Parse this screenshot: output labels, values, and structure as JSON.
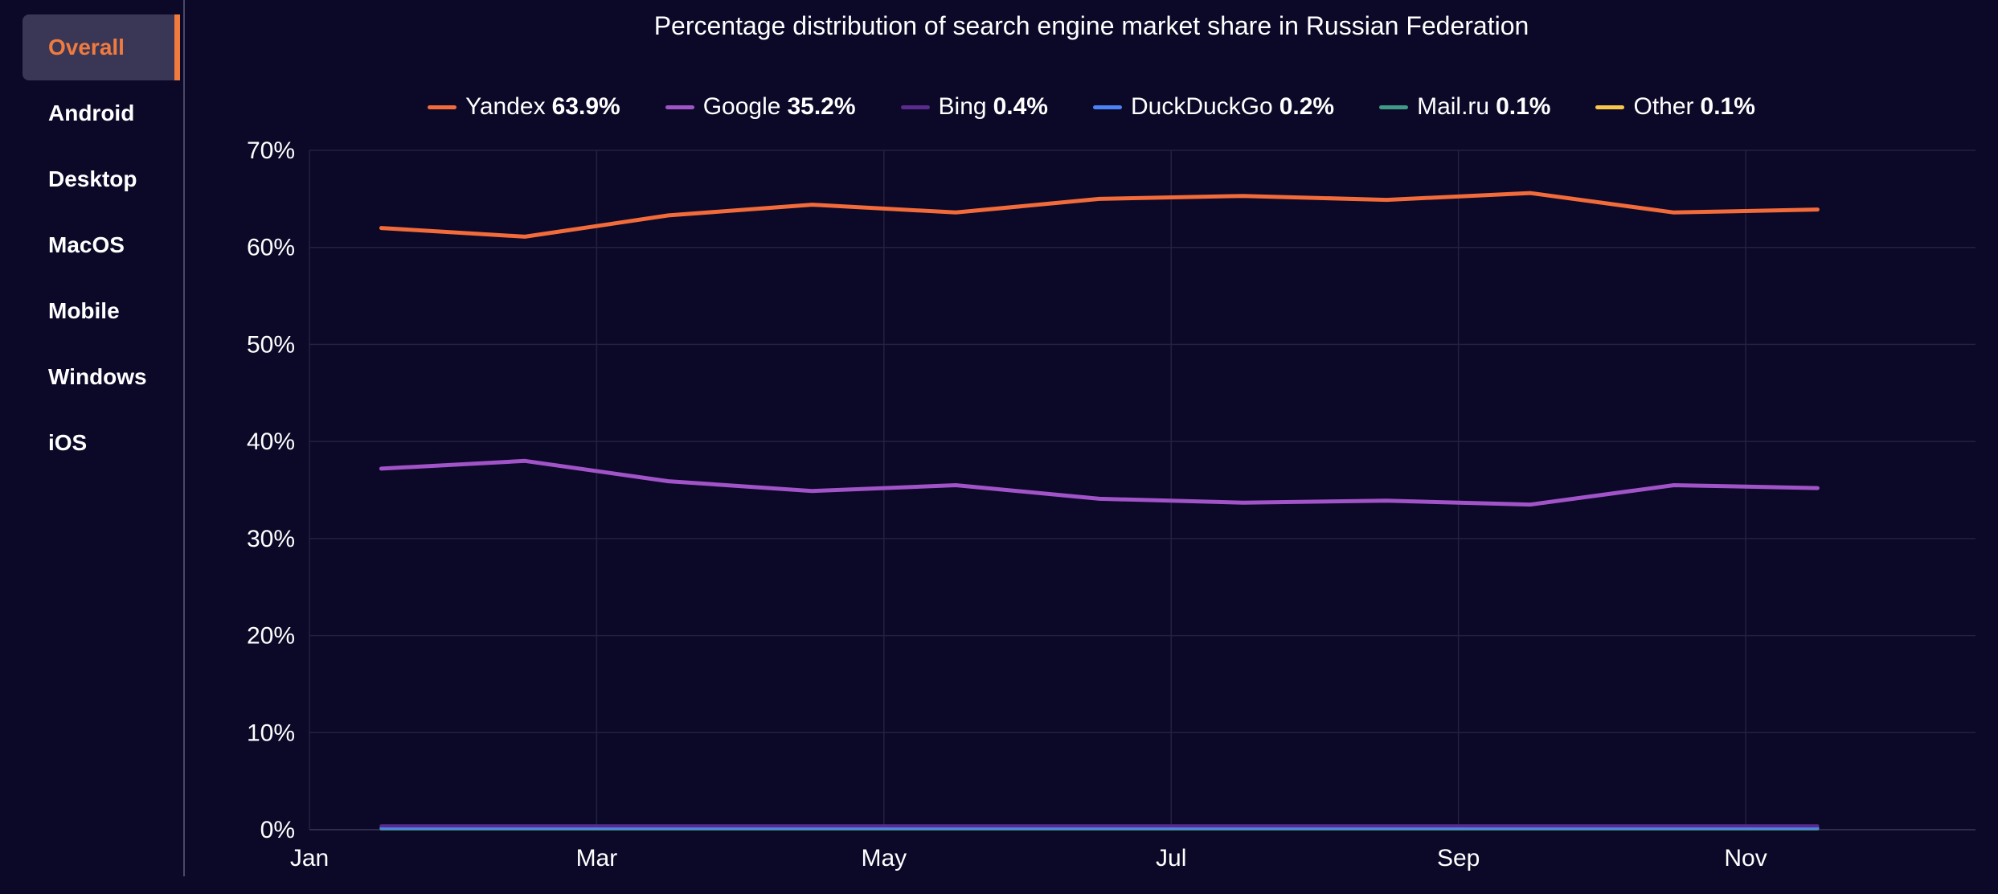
{
  "sidebar": {
    "items": [
      {
        "label": "Overall",
        "active": true
      },
      {
        "label": "Android",
        "active": false
      },
      {
        "label": "Desktop",
        "active": false
      },
      {
        "label": "MacOS",
        "active": false
      },
      {
        "label": "Mobile",
        "active": false
      },
      {
        "label": "Windows",
        "active": false
      },
      {
        "label": "iOS",
        "active": false
      }
    ]
  },
  "colors": {
    "background": "#0b0828",
    "accent": "#f07b3f",
    "grid": "#24213f"
  },
  "chart_data": {
    "type": "line",
    "title": "Percentage distribution of search engine market share in Russian Federation",
    "xlabel": "",
    "ylabel": "",
    "x_tick_labels": [
      "Jan",
      "Mar",
      "May",
      "Jul",
      "Sep",
      "Nov"
    ],
    "y_tick_labels": [
      "0%",
      "10%",
      "20%",
      "30%",
      "40%",
      "50%",
      "60%",
      "70%"
    ],
    "ylim": [
      0,
      70
    ],
    "grid": true,
    "legend_position": "top-center",
    "x": [
      "Jan 15",
      "Feb 15",
      "Mar 15",
      "Apr 15",
      "May 15",
      "Jun 15",
      "Jul 15",
      "Aug 15",
      "Sep 15",
      "Oct 15",
      "Nov 15"
    ],
    "series": [
      {
        "name": "Yandex",
        "legend_value": "63.9%",
        "color": "#f26b3a",
        "values": [
          62.0,
          61.1,
          63.3,
          64.4,
          63.6,
          65.0,
          65.3,
          64.9,
          65.6,
          63.6,
          63.9
        ]
      },
      {
        "name": "Google",
        "legend_value": "35.2%",
        "color": "#a153c8",
        "values": [
          37.2,
          38.0,
          35.9,
          34.9,
          35.5,
          34.1,
          33.7,
          33.9,
          33.5,
          35.5,
          35.2
        ]
      },
      {
        "name": "Bing",
        "legend_value": "0.4%",
        "color": "#5a2a8c",
        "values": [
          0.4,
          0.4,
          0.4,
          0.4,
          0.4,
          0.4,
          0.4,
          0.4,
          0.4,
          0.4,
          0.4
        ]
      },
      {
        "name": "DuckDuckGo",
        "legend_value": "0.2%",
        "color": "#4b82f5",
        "values": [
          0.2,
          0.2,
          0.2,
          0.2,
          0.2,
          0.2,
          0.2,
          0.2,
          0.2,
          0.2,
          0.2
        ]
      },
      {
        "name": "Mail.ru",
        "legend_value": "0.1%",
        "color": "#3f9b86",
        "values": [
          0.1,
          0.1,
          0.1,
          0.1,
          0.1,
          0.1,
          0.1,
          0.1,
          0.1,
          0.1,
          0.1
        ]
      },
      {
        "name": "Other",
        "legend_value": "0.1%",
        "color": "#f8c64b",
        "values": [
          0.1,
          0.1,
          0.1,
          0.1,
          0.1,
          0.1,
          0.1,
          0.1,
          0.1,
          0.1,
          0.1
        ]
      }
    ]
  }
}
